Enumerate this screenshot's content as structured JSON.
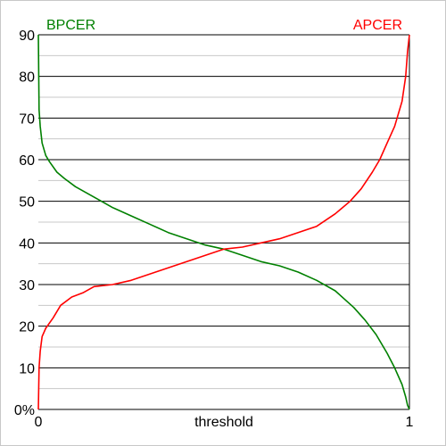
{
  "chart_data": {
    "type": "line",
    "xlabel": "threshold",
    "x_ticks": [
      "0",
      "1"
    ],
    "y_ticks": [
      "0%",
      "10",
      "20",
      "30",
      "40",
      "50",
      "60",
      "70",
      "80",
      "90"
    ],
    "xlim": [
      0,
      1
    ],
    "ylim": [
      0,
      90
    ],
    "grid": true,
    "legend": "top",
    "series": [
      {
        "name": "BPCER",
        "color": "#008000",
        "x": [
          0,
          0.002,
          0.005,
          0.01,
          0.02,
          0.03,
          0.05,
          0.07,
          0.1,
          0.13,
          0.16,
          0.2,
          0.25,
          0.3,
          0.35,
          0.4,
          0.45,
          0.5,
          0.55,
          0.6,
          0.65,
          0.7,
          0.75,
          0.8,
          0.85,
          0.88,
          0.91,
          0.94,
          0.96,
          0.98,
          0.99,
          0.995,
          1.0
        ],
        "y": [
          90,
          72,
          68,
          64,
          61,
          59.5,
          57,
          55.5,
          53.5,
          52,
          50.5,
          48.5,
          46.5,
          44.5,
          42.5,
          41,
          39.5,
          38.5,
          37,
          35.5,
          34.5,
          33,
          31,
          28.5,
          24.5,
          21.5,
          18,
          13.5,
          10,
          6,
          3,
          1,
          0
        ]
      },
      {
        "name": "APCER",
        "color": "#ff0000",
        "x": [
          0,
          0.002,
          0.005,
          0.01,
          0.02,
          0.04,
          0.06,
          0.09,
          0.12,
          0.15,
          0.2,
          0.25,
          0.3,
          0.35,
          0.4,
          0.45,
          0.5,
          0.55,
          0.6,
          0.65,
          0.7,
          0.75,
          0.8,
          0.84,
          0.87,
          0.9,
          0.92,
          0.94,
          0.96,
          0.98,
          0.99,
          0.995,
          1.0
        ],
        "y": [
          0,
          10,
          14,
          17.5,
          19.5,
          22,
          25,
          27,
          28,
          29.5,
          30,
          31,
          32.5,
          34,
          35.5,
          37,
          38.5,
          39,
          40,
          41,
          42.5,
          44,
          47,
          50,
          53,
          57,
          60,
          64,
          68,
          74,
          80,
          86,
          90
        ]
      }
    ]
  }
}
